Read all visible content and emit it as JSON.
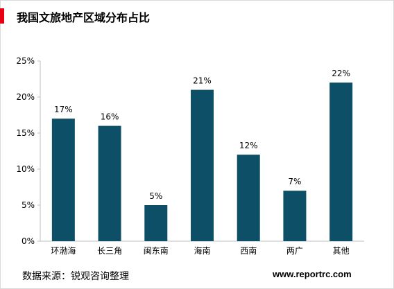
{
  "header": {
    "title": "我国文旅地产区域分布占比"
  },
  "footer": {
    "source": "数据来源：锐观咨询整理",
    "website": "www.reportrc.com"
  },
  "colors": {
    "bar": "#0d4f66",
    "accent": "#e60012",
    "axis": "#bfbfbf"
  },
  "chart_data": {
    "type": "bar",
    "title": "",
    "xlabel": "",
    "ylabel": "",
    "categories": [
      "环渤海",
      "长三角",
      "闽东南",
      "海南",
      "西南",
      "两广",
      "其他"
    ],
    "values": [
      17,
      16,
      5,
      21,
      12,
      7,
      22
    ],
    "value_labels": [
      "17%",
      "16%",
      "5%",
      "21%",
      "12%",
      "7%",
      "22%"
    ],
    "yticks": [
      0,
      5,
      10,
      15,
      20,
      25
    ],
    "ytick_labels": [
      "0%",
      "5%",
      "10%",
      "15%",
      "20%",
      "25%"
    ],
    "ylim": [
      0,
      25
    ],
    "grid": false,
    "legend": "none"
  }
}
